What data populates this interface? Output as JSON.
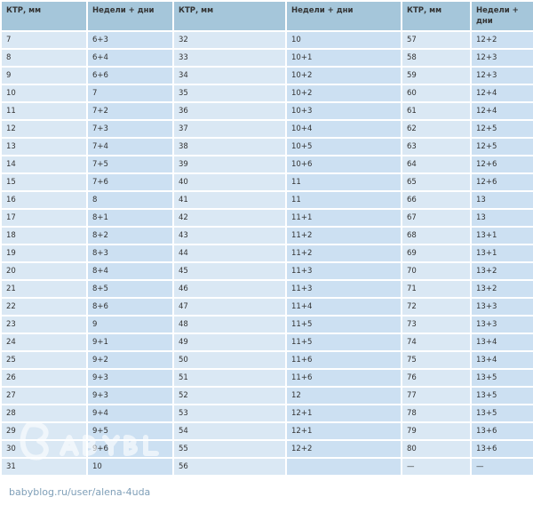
{
  "table": {
    "headers": [
      "КТР, мм",
      "Недели + дни",
      "КТР, мм",
      "Недели + дни",
      "КТР, мм",
      "Недели + дни"
    ],
    "rows": [
      [
        "7",
        "6+3",
        "32",
        "10",
        "57",
        "12+2"
      ],
      [
        "8",
        "6+4",
        "33",
        "10+1",
        "58",
        "12+3"
      ],
      [
        "9",
        "6+6",
        "34",
        "10+2",
        "59",
        "12+3"
      ],
      [
        "10",
        "7",
        "35",
        "10+2",
        "60",
        "12+4"
      ],
      [
        "11",
        "7+2",
        "36",
        "10+3",
        "61",
        "12+4"
      ],
      [
        "12",
        "7+3",
        "37",
        "10+4",
        "62",
        "12+5"
      ],
      [
        "13",
        "7+4",
        "38",
        "10+5",
        "63",
        "12+5"
      ],
      [
        "14",
        "7+5",
        "39",
        "10+6",
        "64",
        "12+6"
      ],
      [
        "15",
        "7+6",
        "40",
        "11",
        "65",
        "12+6"
      ],
      [
        "16",
        "8",
        "41",
        "11",
        "66",
        "13"
      ],
      [
        "17",
        "8+1",
        "42",
        "11+1",
        "67",
        "13"
      ],
      [
        "18",
        "8+2",
        "43",
        "11+2",
        "68",
        "13+1"
      ],
      [
        "19",
        "8+3",
        "44",
        "11+2",
        "69",
        "13+1"
      ],
      [
        "20",
        "8+4",
        "45",
        "11+3",
        "70",
        "13+2"
      ],
      [
        "21",
        "8+5",
        "46",
        "11+3",
        "71",
        "13+2"
      ],
      [
        "22",
        "8+6",
        "47",
        "11+4",
        "72",
        "13+3"
      ],
      [
        "23",
        "9",
        "48",
        "11+5",
        "73",
        "13+3"
      ],
      [
        "24",
        "9+1",
        "49",
        "11+5",
        "74",
        "13+4"
      ],
      [
        "25",
        "9+2",
        "50",
        "11+6",
        "75",
        "13+4"
      ],
      [
        "26",
        "9+3",
        "51",
        "11+6",
        "76",
        "13+5"
      ],
      [
        "27",
        "9+3",
        "52",
        "12",
        "77",
        "13+5"
      ],
      [
        "28",
        "9+4",
        "53",
        "12+1",
        "78",
        "13+5"
      ],
      [
        "29",
        "9+5",
        "54",
        "12+1",
        "79",
        "13+6"
      ],
      [
        "30",
        "9+6",
        "55",
        "12+2",
        "80",
        "13+6"
      ],
      [
        "31",
        "10",
        "56",
        "",
        "—",
        "—"
      ]
    ]
  },
  "watermark": {
    "logo": "BabyBlog",
    "text": "babyblog.ru/user/alena-4uda"
  }
}
